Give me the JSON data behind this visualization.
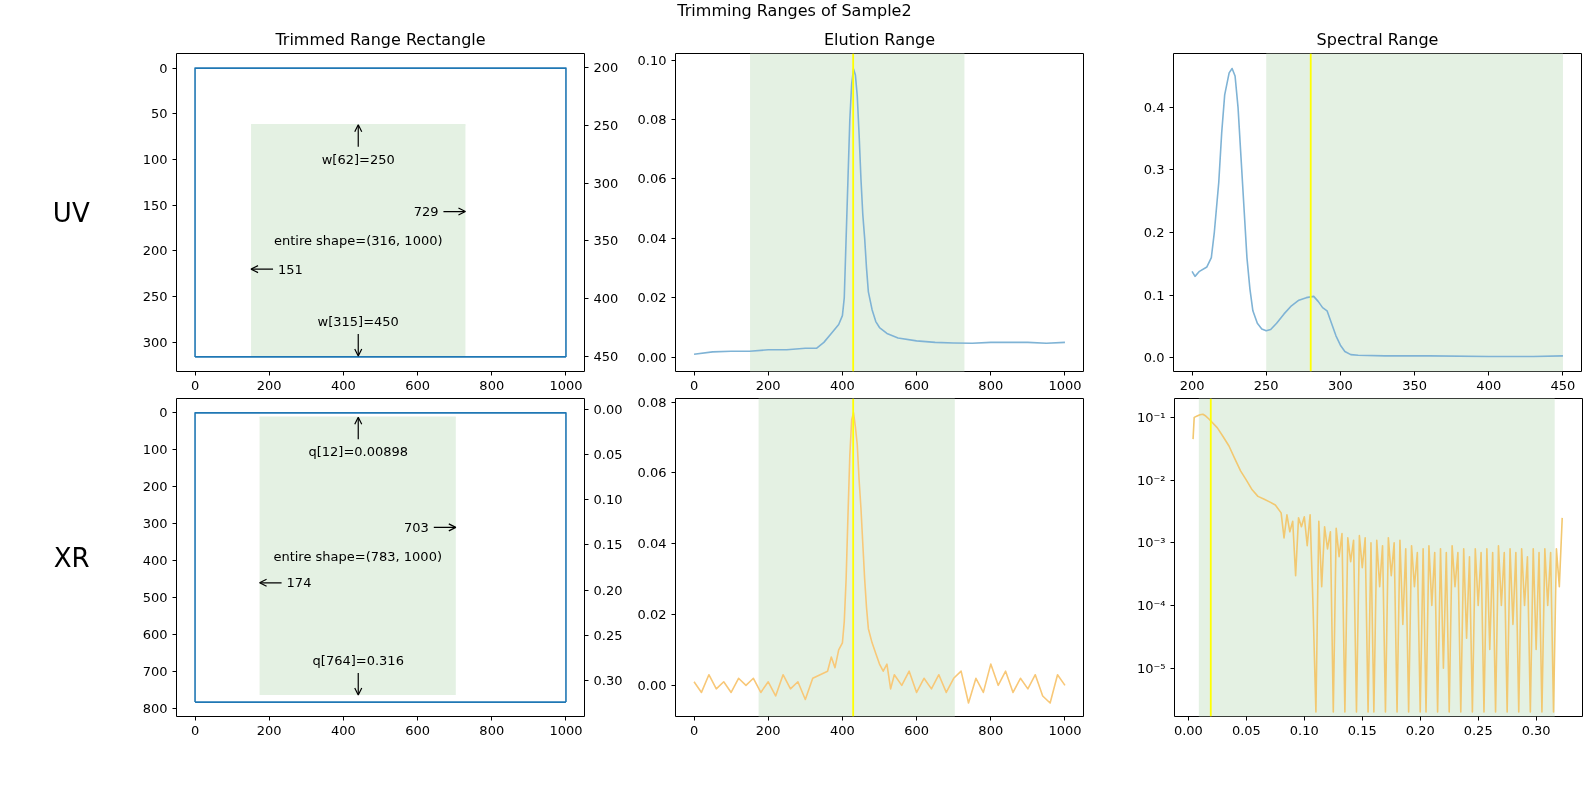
{
  "chart_data": [
    {
      "type": "line",
      "title": "Trimmed Range Rectangle",
      "ylabel": "UV",
      "annotations": [
        "Trimming Ranges of Sample2",
        "entire shape=(316, 1000)",
        {
          "text": "w[62]=250",
          "x": 440,
          "y": 62
        },
        {
          "text": "729",
          "x": 729,
          "y": 157
        },
        {
          "text": "151",
          "x": 151,
          "y": 220
        },
        {
          "text": "w[315]=450",
          "x": 440,
          "y": 315
        }
      ],
      "series": [
        {
          "type": "line",
          "x": [
            151,
            729
          ],
          "values": [
            62,
            62
          ],
          "lower": [
            62,
            62
          ],
          "upper": [
            315,
            315
          ],
          "color": "#e4f1e3"
        },
        {
          "type": "line",
          "x": [
            0,
            0,
            1000,
            1000
          ],
          "values": [
            316,
            0,
            0,
            316
          ],
          "color": "#1f77b4"
        },
        {
          "type": "line",
          "x": [
            0,
            1000
          ],
          "values": [
            316,
            316
          ],
          "color": "#1f77b4"
        }
      ],
      "xlim": [
        -50,
        1050
      ],
      "ylim": [
        332,
        -16
      ],
      "xticks": [
        0,
        200,
        400,
        600,
        800,
        1000
      ],
      "yticks": [
        0,
        50,
        100,
        150,
        200,
        250,
        300
      ],
      "y2lim": [
        463,
        188
      ],
      "y2ticks": [
        200,
        250,
        300,
        350,
        400,
        450
      ]
    },
    {
      "type": "line",
      "title": "Elution Range",
      "series": [
        {
          "color": "#7fb3d5",
          "x": [
            0,
            50,
            100,
            150,
            200,
            250,
            300,
            330,
            350,
            370,
            390,
            400,
            405,
            410,
            415,
            420,
            425,
            430,
            435,
            440,
            445,
            450,
            455,
            460,
            465,
            470,
            480,
            490,
            500,
            520,
            550,
            600,
            650,
            700,
            750,
            800,
            850,
            900,
            950,
            1000
          ],
          "values": [
            0.001,
            0.0018,
            0.002,
            0.002,
            0.0025,
            0.0025,
            0.003,
            0.003,
            0.005,
            0.008,
            0.011,
            0.014,
            0.02,
            0.04,
            0.06,
            0.08,
            0.092,
            0.097,
            0.095,
            0.088,
            0.075,
            0.06,
            0.048,
            0.04,
            0.03,
            0.022,
            0.016,
            0.012,
            0.01,
            0.008,
            0.0065,
            0.0055,
            0.005,
            0.0048,
            0.0047,
            0.005,
            0.005,
            0.005,
            0.0047,
            0.005
          ]
        }
      ],
      "bands": [
        {
          "axis": "x",
          "from": 151,
          "to": 729,
          "color": "#e4f1e3"
        }
      ],
      "ref_lines": [
        {
          "axis": "x",
          "value": 429,
          "color": "#ffff00"
        }
      ],
      "xlim": [
        -50,
        1050
      ],
      "ylim": [
        -0.0048,
        0.1022
      ],
      "xticks": [
        0,
        200,
        400,
        600,
        800,
        1000
      ],
      "yticks": [
        {
          "value": 0,
          "label": "0.00"
        },
        {
          "value": 0.02,
          "label": "0.02"
        },
        {
          "value": 0.04,
          "label": "0.04"
        },
        {
          "value": 0.06,
          "label": "0.06"
        },
        {
          "value": 0.08,
          "label": "0.08"
        },
        {
          "value": 0.1,
          "label": "0.10"
        }
      ]
    },
    {
      "type": "line",
      "title": "Spectral Range",
      "series": [
        {
          "color": "#7fb3d5",
          "x": [
            200,
            202,
            205,
            210,
            213,
            215,
            218,
            220,
            222,
            225,
            227,
            229,
            231,
            233,
            235,
            237,
            239,
            241,
            244,
            247,
            250,
            253,
            257,
            262,
            267,
            272,
            277,
            282,
            285,
            288,
            291,
            294,
            297,
            300,
            303,
            307,
            312,
            330,
            360,
            400,
            430,
            450
          ],
          "values": [
            0.138,
            0.13,
            0.138,
            0.145,
            0.16,
            0.2,
            0.28,
            0.36,
            0.42,
            0.455,
            0.462,
            0.45,
            0.4,
            0.32,
            0.24,
            0.16,
            0.11,
            0.075,
            0.055,
            0.046,
            0.043,
            0.045,
            0.055,
            0.07,
            0.083,
            0.092,
            0.096,
            0.098,
            0.09,
            0.08,
            0.075,
            0.055,
            0.035,
            0.02,
            0.01,
            0.005,
            0.004,
            0.003,
            0.003,
            0.002,
            0.002,
            0.003
          ]
        }
      ],
      "bands": [
        {
          "axis": "x",
          "from": 250,
          "to": 450,
          "color": "#e4f1e3"
        }
      ],
      "ref_lines": [
        {
          "axis": "x",
          "value": 280,
          "color": "#ffff00"
        }
      ],
      "xlim": [
        187.5,
        462.5
      ],
      "ylim": [
        -0.022,
        0.486
      ],
      "xticks": [
        200,
        250,
        300,
        350,
        400,
        450
      ],
      "yticks": [
        {
          "value": 0,
          "label": "0.0"
        },
        0.1,
        0.2,
        0.3,
        0.4
      ]
    },
    {
      "type": "line",
      "ylabel": "XR",
      "annotations": [
        "entire shape=(783, 1000)",
        {
          "text": "q[12]=0.00898",
          "x": 440,
          "y": 12
        },
        {
          "text": "703",
          "x": 703,
          "y": 310
        },
        {
          "text": "174",
          "x": 174,
          "y": 460
        },
        {
          "text": "q[764]=0.316",
          "x": 440,
          "y": 764
        }
      ],
      "series": [
        {
          "type": "line",
          "x": [
            174,
            703
          ],
          "values": [
            12,
            12
          ],
          "lower": [
            12,
            12
          ],
          "upper": [
            764,
            764
          ],
          "color": "#e4f1e3"
        },
        {
          "type": "line",
          "x": [
            0,
            0,
            1000,
            1000
          ],
          "values": [
            783,
            0,
            0,
            783
          ],
          "color": "#1f77b4"
        },
        {
          "type": "line",
          "x": [
            0,
            1000
          ],
          "values": [
            783,
            783
          ],
          "color": "#1f77b4"
        }
      ],
      "xlim": [
        -50,
        1050
      ],
      "ylim": [
        822,
        -39
      ],
      "xticks": [
        0,
        200,
        400,
        600,
        800,
        1000
      ],
      "yticks": [
        0,
        100,
        200,
        300,
        400,
        500,
        600,
        700,
        800
      ],
      "y2lim": [
        0.34,
        -0.012
      ],
      "y2ticks": [
        {
          "value": 0,
          "label": "0.00"
        },
        {
          "value": 0.05,
          "label": "0.05"
        },
        {
          "value": 0.1,
          "label": "0.10"
        },
        {
          "value": 0.15,
          "label": "0.15"
        },
        {
          "value": 0.2,
          "label": "0.20"
        },
        {
          "value": 0.25,
          "label": "0.25"
        },
        {
          "value": 0.3,
          "label": "0.30"
        }
      ]
    },
    {
      "type": "line",
      "series": [
        {
          "color": "#f8c878",
          "x": [
            0,
            20,
            40,
            60,
            80,
            100,
            120,
            140,
            160,
            180,
            200,
            220,
            240,
            260,
            280,
            300,
            320,
            340,
            360,
            370,
            380,
            390,
            400,
            405,
            410,
            415,
            420,
            425,
            430,
            435,
            440,
            445,
            450,
            455,
            460,
            465,
            470,
            480,
            490,
            500,
            510,
            520,
            530,
            540,
            560,
            580,
            600,
            620,
            640,
            660,
            680,
            700,
            720,
            740,
            760,
            780,
            800,
            820,
            840,
            860,
            880,
            900,
            920,
            940,
            960,
            980,
            1000
          ],
          "values": [
            0.001,
            -0.002,
            0.003,
            -0.001,
            0.001,
            -0.002,
            0.002,
            0.0,
            0.002,
            -0.002,
            0.001,
            -0.003,
            0.003,
            -0.001,
            0.001,
            -0.004,
            0.002,
            0.003,
            0.004,
            0.008,
            0.005,
            0.01,
            0.012,
            0.018,
            0.03,
            0.048,
            0.065,
            0.075,
            0.077,
            0.073,
            0.068,
            0.058,
            0.05,
            0.04,
            0.03,
            0.022,
            0.016,
            0.012,
            0.009,
            0.006,
            0.004,
            0.006,
            -0.001,
            0.003,
            0.0,
            0.004,
            -0.002,
            0.002,
            -0.001,
            0.003,
            -0.002,
            0.002,
            0.004,
            -0.005,
            0.002,
            -0.002,
            0.006,
            0.0,
            0.004,
            -0.002,
            0.002,
            -0.001,
            0.003,
            -0.003,
            -0.005,
            0.003,
            0.0
          ]
        }
      ],
      "bands": [
        {
          "axis": "x",
          "from": 174,
          "to": 703,
          "color": "#e4f1e3"
        }
      ],
      "ref_lines": [
        {
          "axis": "x",
          "value": 429,
          "color": "#ffff00"
        }
      ],
      "xlim": [
        -50,
        1050
      ],
      "ylim": [
        -0.0088,
        0.081
      ],
      "xticks": [
        0,
        200,
        400,
        600,
        800,
        1000
      ],
      "yticks": [
        {
          "value": 0,
          "label": "0.00"
        },
        {
          "value": 0.02,
          "label": "0.02"
        },
        {
          "value": 0.04,
          "label": "0.04"
        },
        {
          "value": 0.06,
          "label": "0.06"
        },
        {
          "value": 0.08,
          "label": "0.08"
        }
      ]
    },
    {
      "type": "line",
      "log": "y",
      "series": [
        {
          "color": "#f2c870",
          "x": [
            0.004,
            0.005,
            0.0075,
            0.01,
            0.0125,
            0.015,
            0.0175,
            0.02,
            0.025,
            0.03,
            0.035,
            0.04,
            0.045,
            0.05,
            0.055,
            0.06,
            0.065,
            0.07,
            0.075,
            0.08,
            0.0825,
            0.085,
            0.0875,
            0.09,
            0.0925,
            0.095,
            0.0975,
            0.1,
            0.1025,
            0.105,
            0.1075,
            0.11,
            0.1125,
            0.115,
            0.1175,
            0.12,
            0.1225,
            0.125,
            0.1275,
            0.13,
            0.1325,
            0.135,
            0.1375,
            0.14,
            0.1425,
            0.145,
            0.1475,
            0.15,
            0.1525,
            0.155,
            0.1575,
            0.16,
            0.1625,
            0.165,
            0.1675,
            0.17,
            0.1725,
            0.175,
            0.1775,
            0.18,
            0.1825,
            0.185,
            0.1875,
            0.19,
            0.1925,
            0.195,
            0.1975,
            0.2,
            0.2025,
            0.205,
            0.2075,
            0.21,
            0.2125,
            0.215,
            0.2175,
            0.22,
            0.2225,
            0.225,
            0.2275,
            0.23,
            0.2325,
            0.235,
            0.2375,
            0.24,
            0.2425,
            0.245,
            0.2475,
            0.25,
            0.2525,
            0.255,
            0.2575,
            0.26,
            0.2625,
            0.265,
            0.2675,
            0.27,
            0.2725,
            0.275,
            0.2775,
            0.28,
            0.2825,
            0.285,
            0.2875,
            0.29,
            0.2925,
            0.295,
            0.2975,
            0.3,
            0.3025,
            0.305,
            0.3075,
            0.31,
            0.3125,
            0.315,
            0.3175,
            0.32,
            0.3225
          ],
          "values": [
            0.045,
            0.1,
            0.105,
            0.11,
            0.112,
            0.105,
            0.095,
            0.085,
            0.068,
            0.049,
            0.035,
            0.022,
            0.014,
            0.01,
            0.007,
            0.0055,
            0.005,
            0.0045,
            0.004,
            0.003,
            0.0012,
            0.0028,
            0.0015,
            0.0022,
            0.0003,
            0.0025,
            0.0018,
            0.0026,
            0.0009,
            0.0028,
            0.0001,
            2e-06,
            0.0022,
            0.0002,
            0.0018,
            0.0008,
            0.0015,
            2e-06,
            0.0017,
            0.0006,
            0.0014,
            2e-06,
            0.0012,
            0.0005,
            0.0011,
            2e-06,
            0.0013,
            0.0004,
            0.0012,
            2e-06,
            0.001,
            2e-06,
            0.0011,
            0.0002,
            0.0009,
            2e-06,
            0.0012,
            0.0003,
            0.001,
            2e-06,
            0.0011,
            5e-05,
            0.0008,
            2e-06,
            0.0009,
            0.0002,
            0.0007,
            2e-06,
            0.0008,
            2e-06,
            0.0009,
            0.0001,
            0.0007,
            2e-06,
            0.0008,
            1e-05,
            0.0007,
            2e-06,
            0.0009,
            0.0002,
            0.0007,
            2e-06,
            0.0008,
            3e-05,
            0.0006,
            2e-06,
            0.0008,
            0.0001,
            0.0007,
            2e-06,
            0.0008,
            2e-05,
            0.0007,
            2e-06,
            0.0009,
            0.0001,
            0.0007,
            2e-06,
            0.0008,
            5e-05,
            0.0007,
            2e-06,
            0.0008,
            0.0001,
            0.0006,
            2e-06,
            0.0008,
            2e-05,
            0.0007,
            2e-06,
            0.0008,
            0.0001,
            0.0007,
            2e-06,
            0.0008,
            0.0002,
            0.0025
          ]
        }
      ],
      "bands": [
        {
          "axis": "x",
          "from": 0.00898,
          "to": 0.316,
          "color": "#e4f1e3"
        }
      ],
      "ref_lines": [
        {
          "axis": "x",
          "value": 0.0193,
          "color": "#ffff00"
        }
      ],
      "xlim": [
        -0.012,
        0.34
      ],
      "ylim": [
        1.7e-06,
        0.2
      ],
      "xticks": [
        {
          "value": 0,
          "label": "0.00"
        },
        {
          "value": 0.05,
          "label": "0.05"
        },
        {
          "value": 0.1,
          "label": "0.10"
        },
        {
          "value": 0.15,
          "label": "0.15"
        },
        {
          "value": 0.2,
          "label": "0.20"
        },
        {
          "value": 0.25,
          "label": "0.25"
        },
        {
          "value": 0.3,
          "label": "0.30"
        }
      ],
      "yticks": [
        {
          "value": 1e-05,
          "label": "10⁻⁵"
        },
        {
          "value": 0.0001,
          "label": "10⁻⁴"
        },
        {
          "value": 0.001,
          "label": "10⁻³"
        },
        {
          "value": 0.01,
          "label": "10⁻²"
        },
        {
          "value": 0.1,
          "label": "10⁻¹"
        }
      ]
    }
  ]
}
